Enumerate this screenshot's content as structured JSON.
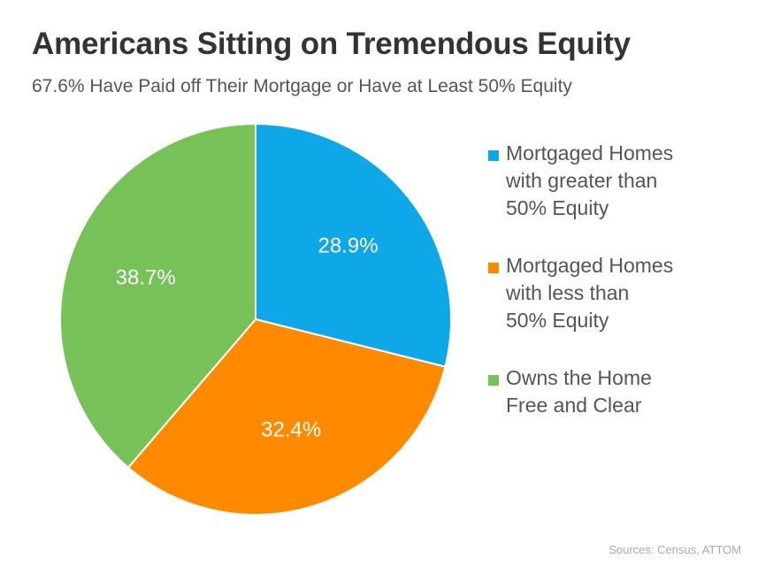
{
  "chart_data": {
    "type": "pie",
    "title": "Americans Sitting on Tremendous Equity",
    "subtitle": "67.6% Have Paid off Their Mortgage or Have at Least 50% Equity",
    "slices": [
      {
        "label_lines": [
          "Mortgaged Homes",
          "with greater than",
          "50% Equity"
        ],
        "value": 28.9,
        "display": "28.9%",
        "color": "#0ea7e8"
      },
      {
        "label_lines": [
          "Mortgaged Homes",
          "with less than",
          "50% Equity"
        ],
        "value": 32.4,
        "display": "32.4%",
        "color": "#ff8a00"
      },
      {
        "label_lines": [
          "Owns the Home",
          "Free and Clear"
        ],
        "value": 38.7,
        "display": "38.7%",
        "color": "#77c258"
      }
    ],
    "legend_position": "right",
    "source": "Sources: Census, ATTOM"
  }
}
